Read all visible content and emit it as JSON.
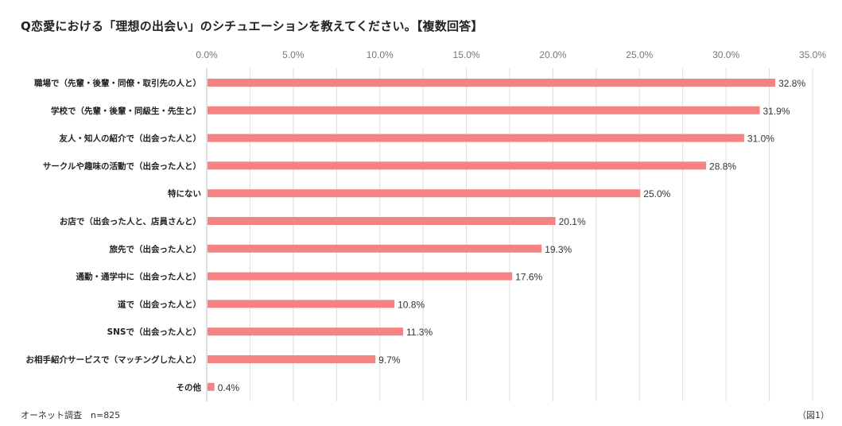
{
  "title": "Q恋愛における「理想の出会い」のシチュエーションを教えてください。【複数回答】",
  "source": "オーネット調査　n=825",
  "figure_label": "（図1）",
  "colors": {
    "bar": "#F58383",
    "grid": "#dcdcdc",
    "axis": "#bfbfbf"
  },
  "chart_data": {
    "type": "bar",
    "orientation": "horizontal",
    "title": "Q恋愛における「理想の出会い」のシチュエーションを教えてください。【複数回答】",
    "xlim": [
      0,
      35
    ],
    "xticks": [
      "0.0%",
      "5.0%",
      "10.0%",
      "15.0%",
      "20.0%",
      "25.0%",
      "30.0%",
      "35.0%"
    ],
    "grid": true,
    "categories": [
      "職場で（先輩・後輩・同僚・取引先の人と）",
      "学校で（先輩・後輩・同級生・先生と）",
      "友人・知人の紹介で（出会った人と）",
      "サークルや趣味の活動で（出会った人と）",
      "特にない",
      "お店で（出会った人と、店員さんと）",
      "旅先で（出会った人と）",
      "通勤・通学中に（出会った人と）",
      "道で（出会った人と）",
      "SNSで（出会った人と）",
      "お相手紹介サービスで（マッチングした人と）",
      "その他"
    ],
    "values": [
      32.8,
      31.9,
      31.0,
      28.8,
      25.0,
      20.1,
      19.3,
      17.6,
      10.8,
      11.3,
      9.7,
      0.4
    ],
    "value_labels": [
      "32.8%",
      "31.9%",
      "31.0%",
      "28.8%",
      "25.0%",
      "20.1%",
      "19.3%",
      "17.6%",
      "10.8%",
      "11.3%",
      "9.7%",
      "0.4%"
    ]
  }
}
